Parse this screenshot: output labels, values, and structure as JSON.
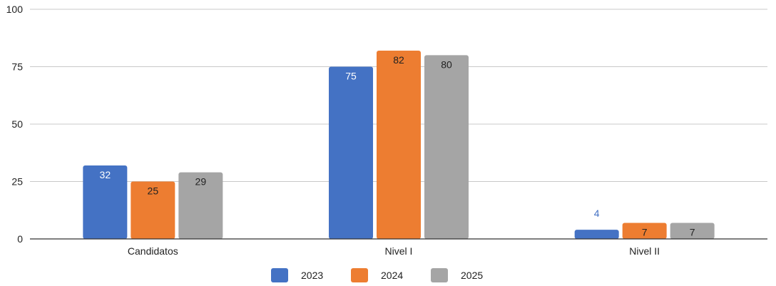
{
  "chart_data": {
    "type": "bar",
    "categories": [
      "Candidatos",
      "Nivel I",
      "Nivel II"
    ],
    "series": [
      {
        "name": "2023",
        "values": [
          32,
          75,
          4
        ],
        "color": "#4472C4"
      },
      {
        "name": "2024",
        "values": [
          25,
          82,
          7
        ],
        "color": "#ED7D31"
      },
      {
        "name": "2025",
        "values": [
          29,
          80,
          7
        ],
        "color": "#A5A5A5"
      }
    ],
    "ylim": [
      0,
      100
    ],
    "yticks": [
      0,
      25,
      50,
      75,
      100
    ],
    "grid": true,
    "legend_position": "bottom",
    "title": "",
    "xlabel": "",
    "ylabel": ""
  }
}
